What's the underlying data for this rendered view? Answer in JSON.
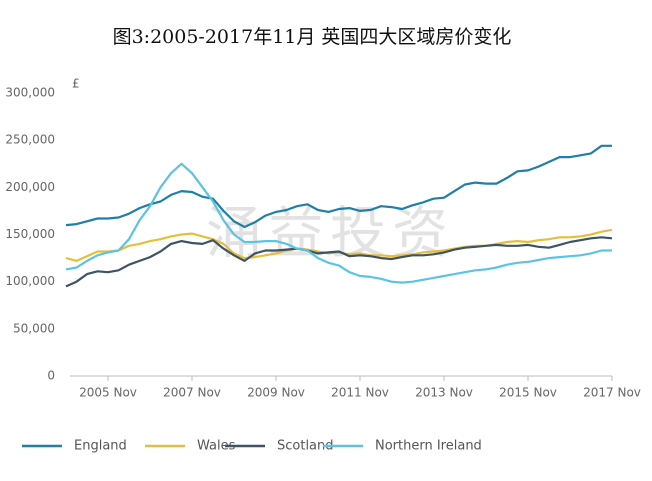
{
  "chart_data": {
    "type": "line",
    "title": "图3:2005-2017年11月  英国四大区域房价变化",
    "y_unit": "£",
    "watermark": "涌益投资",
    "categories": [
      null,
      null,
      null,
      null,
      "2005 Nov",
      null,
      null,
      null,
      null,
      null,
      null,
      null,
      "2007 Nov",
      null,
      null,
      null,
      null,
      null,
      null,
      null,
      "2009 Nov",
      null,
      null,
      null,
      null,
      null,
      null,
      null,
      "2011 Nov",
      null,
      null,
      null,
      null,
      null,
      null,
      null,
      "2013 Nov",
      null,
      null,
      null,
      null,
      null,
      null,
      null,
      "2015 Nov",
      null,
      null,
      null,
      null,
      null,
      null,
      null,
      "2017 Nov"
    ],
    "series": [
      {
        "name": "England",
        "color": "#1f7fa6",
        "values": [
          160000,
          161000,
          164000,
          167000,
          167000,
          168000,
          172000,
          178000,
          182000,
          185000,
          192000,
          196000,
          195000,
          190000,
          188000,
          175000,
          164000,
          158000,
          163000,
          170000,
          174000,
          176000,
          180000,
          182000,
          176000,
          174000,
          177000,
          178000,
          175000,
          176000,
          180000,
          179000,
          177000,
          181000,
          184000,
          188000,
          189000,
          196000,
          203000,
          205000,
          204000,
          204000,
          210000,
          217000,
          218000,
          222000,
          227000,
          232000,
          232000,
          234000,
          236000,
          244000,
          244000
        ]
      },
      {
        "name": "Wales",
        "color": "#e6bf3a",
        "values": [
          125000,
          122000,
          127000,
          132000,
          132000,
          133000,
          138000,
          140000,
          143000,
          145000,
          148000,
          150000,
          151000,
          148000,
          145000,
          140000,
          130000,
          125000,
          126000,
          128000,
          130000,
          133000,
          135000,
          134000,
          132000,
          130000,
          131000,
          129000,
          130000,
          128000,
          128000,
          127000,
          128000,
          129000,
          131000,
          132000,
          133000,
          135000,
          137000,
          138000,
          138000,
          140000,
          142000,
          143000,
          142000,
          144000,
          145000,
          147000,
          147000,
          148000,
          150000,
          153000,
          155000
        ]
      },
      {
        "name": "Scotland",
        "color": "#3d5366",
        "values": [
          95000,
          100000,
          108000,
          111000,
          110000,
          112000,
          118000,
          122000,
          126000,
          132000,
          140000,
          143000,
          141000,
          140000,
          144000,
          135000,
          128000,
          122000,
          130000,
          133000,
          133000,
          134000,
          135000,
          133000,
          130000,
          131000,
          132000,
          127000,
          128000,
          127000,
          125000,
          124000,
          126000,
          128000,
          128000,
          129000,
          131000,
          134000,
          136000,
          137000,
          138000,
          139000,
          138000,
          138000,
          139000,
          137000,
          136000,
          139000,
          142000,
          144000,
          146000,
          147000,
          146000
        ]
      },
      {
        "name": "Northern Ireland",
        "color": "#5bc3e3",
        "values": [
          113000,
          115000,
          122000,
          128000,
          131000,
          133000,
          145000,
          165000,
          180000,
          200000,
          215000,
          225000,
          215000,
          200000,
          185000,
          165000,
          150000,
          142000,
          142000,
          143000,
          143000,
          140000,
          135000,
          133000,
          125000,
          120000,
          117000,
          110000,
          106000,
          105000,
          103000,
          100000,
          99000,
          100000,
          102000,
          104000,
          106000,
          108000,
          110000,
          112000,
          113000,
          115000,
          118000,
          120000,
          121000,
          123000,
          125000,
          126000,
          127000,
          128000,
          130000,
          133000,
          133000
        ]
      }
    ],
    "ylim": [
      0,
      300000
    ],
    "yticks": [
      0,
      {
        "value": 50000,
        "label": "50,000"
      },
      {
        "value": 100000,
        "label": "100,000"
      },
      {
        "value": 150000,
        "label": "150,000"
      },
      {
        "value": 200000,
        "label": "200,000"
      },
      {
        "value": 250000,
        "label": "250,000"
      },
      {
        "value": 300000,
        "label": "300,000"
      }
    ],
    "grid": false
  }
}
